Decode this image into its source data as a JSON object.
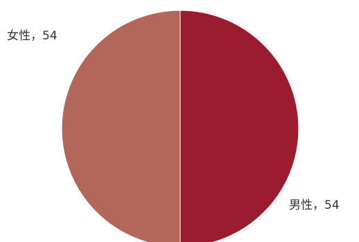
{
  "chart_data": {
    "type": "pie",
    "title": "",
    "legend": "none",
    "slices": [
      {
        "label": "男性",
        "value": 54,
        "display": "男性，54",
        "color": "#9b1c2e"
      },
      {
        "label": "女性",
        "value": 54,
        "display": "女性，54",
        "color": "#b3675a"
      }
    ]
  }
}
